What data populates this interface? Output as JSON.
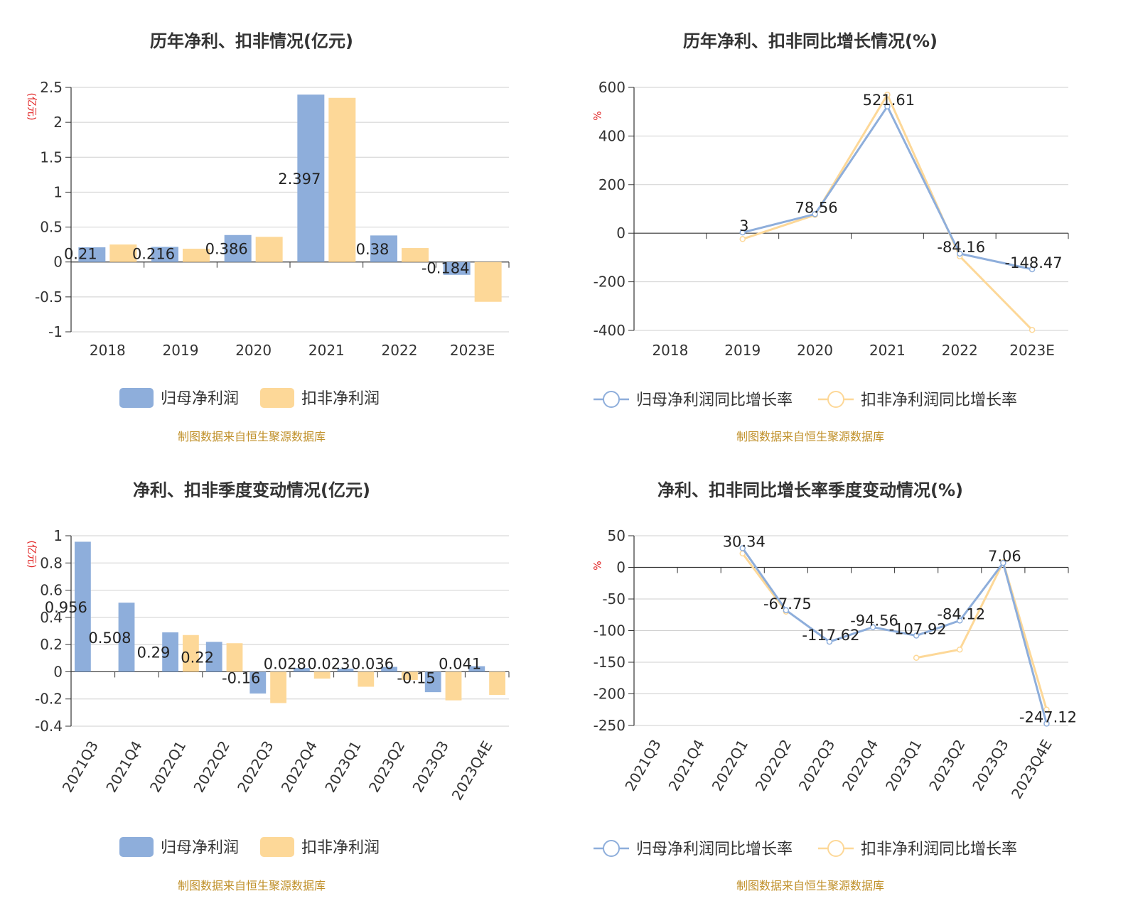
{
  "source_note": "制图数据来自恒生聚源数据库",
  "colors": {
    "net": "#8eaedb",
    "deduct": "#fdd898",
    "grid": "#cfcfcf",
    "axis": "#333333",
    "unit": "#e02020",
    "source": "#c0902a"
  },
  "chart_data": [
    {
      "type": "bar",
      "title": "历年净利、扣非情况(亿元)",
      "unit": "(亿元)",
      "categories": [
        "2018",
        "2019",
        "2020",
        "2021",
        "2022",
        "2023E"
      ],
      "ylim": [
        -1,
        2.5
      ],
      "yticks": [
        "2.5",
        "2",
        "1.5",
        "1",
        "0.5",
        "0",
        "-0.5",
        "-1"
      ],
      "legend_position": "bottom",
      "series": [
        {
          "name": "归母净利润",
          "values": [
            0.21,
            0.216,
            0.386,
            2.397,
            0.38,
            -0.184
          ],
          "labels": [
            "0.21",
            "0.216",
            "0.386",
            "2.397",
            "0.38",
            "-0.184"
          ]
        },
        {
          "name": "扣非净利润",
          "values": [
            0.25,
            0.19,
            0.36,
            2.35,
            0.2,
            -0.57
          ]
        }
      ]
    },
    {
      "type": "line",
      "title": "历年净利、扣非同比增长情况(%)",
      "unit": "%",
      "categories": [
        "2018",
        "2019",
        "2020",
        "2021",
        "2022",
        "2023E"
      ],
      "ylim": [
        -400,
        600
      ],
      "yticks": [
        "600",
        "400",
        "200",
        "0",
        "-200",
        "-400"
      ],
      "legend_position": "bottom",
      "series": [
        {
          "name": "归母净利润同比增长率",
          "values": [
            null,
            3,
            78.56,
            521.61,
            -84.16,
            -148.47
          ],
          "labels": [
            "",
            "3",
            "78.56",
            "521.61",
            "-84.16",
            "-148.47"
          ]
        },
        {
          "name": "扣非净利润同比增长率",
          "values": [
            null,
            -24,
            75,
            570,
            -95,
            -398
          ]
        }
      ]
    },
    {
      "type": "bar",
      "title": "净利、扣非季度变动情况(亿元)",
      "unit": "(亿元)",
      "categories": [
        "2021Q3",
        "2021Q4",
        "2022Q1",
        "2022Q2",
        "2022Q3",
        "2022Q4",
        "2023Q1",
        "2023Q2",
        "2023Q3",
        "2023Q4E"
      ],
      "ylim": [
        -0.4,
        1
      ],
      "yticks": [
        "1",
        "0.8",
        "0.6",
        "0.4",
        "0.2",
        "0",
        "-0.2",
        "-0.4"
      ],
      "legend_position": "bottom",
      "series": [
        {
          "name": "归母净利润",
          "values": [
            0.956,
            0.508,
            0.29,
            0.22,
            -0.16,
            0.028,
            0.023,
            0.036,
            -0.15,
            0.041
          ],
          "labels": [
            "0.956",
            "0.508",
            "0.29",
            "0.22",
            "-0.16",
            "0.028",
            "0.023",
            "0.036",
            "-0.15",
            "0.041"
          ]
        },
        {
          "name": "扣非净利润",
          "values": [
            null,
            null,
            0.27,
            0.21,
            -0.23,
            -0.05,
            -0.11,
            -0.06,
            -0.21,
            -0.17
          ]
        }
      ]
    },
    {
      "type": "line",
      "title": "净利、扣非同比增长率季度变动情况(%)",
      "unit": "%",
      "categories": [
        "2021Q3",
        "2021Q4",
        "2022Q1",
        "2022Q2",
        "2022Q3",
        "2022Q4",
        "2023Q1",
        "2023Q2",
        "2023Q3",
        "2023Q4E"
      ],
      "ylim": [
        -250,
        50
      ],
      "yticks": [
        "50",
        "0",
        "-50",
        "-100",
        "-150",
        "-200",
        "-250"
      ],
      "legend_position": "bottom",
      "series": [
        {
          "name": "归母净利润同比增长率",
          "values": [
            null,
            null,
            30.34,
            -67.75,
            -117.62,
            -94.56,
            -107.92,
            -84.12,
            7.06,
            -247.12
          ],
          "labels": [
            "",
            "",
            "30.34",
            "-67.75",
            "-117.62",
            "-94.56",
            "-107.92",
            "-84.12",
            "7.06",
            "-247.12"
          ]
        },
        {
          "name": "扣非净利润同比增长率",
          "values": [
            null,
            null,
            22,
            -70,
            null,
            null,
            -143,
            -130,
            8,
            -225
          ]
        }
      ]
    }
  ]
}
